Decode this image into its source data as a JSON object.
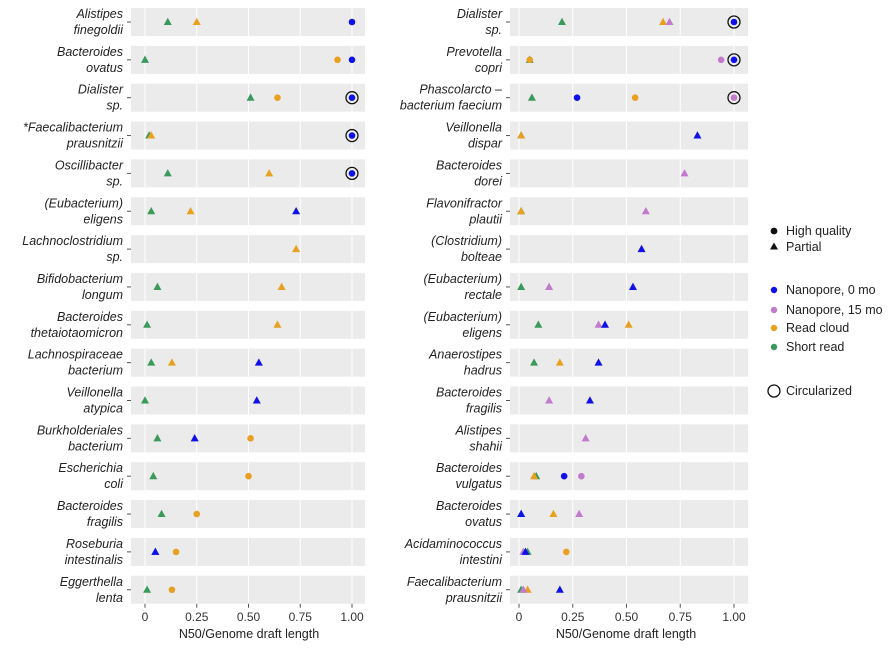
{
  "colors": {
    "Nanopore, 0 mo": "#1010e8",
    "Nanopore, 15 mo": "#c27bcc",
    "Read cloud": "#e8a020",
    "Short read": "#3a9a5c",
    "panel_bg": "#ebebeb"
  },
  "chart_data": [
    {
      "type": "scatter",
      "xlabel": "N50/Genome draft length",
      "xlim": [
        0,
        1
      ],
      "xticks": [
        "0",
        "0.25",
        "0.50",
        "0.75",
        "1.00"
      ],
      "rows": [
        {
          "label": [
            "Alistipes",
            "finegoldii"
          ],
          "points": [
            {
              "method": "Short read",
              "shape": "triangle",
              "x": 0.11
            },
            {
              "method": "Read cloud",
              "shape": "triangle",
              "x": 0.25
            },
            {
              "method": "Nanopore, 0 mo",
              "shape": "circle",
              "x": 1.0
            }
          ]
        },
        {
          "label": [
            "Bacteroides",
            "ovatus"
          ],
          "points": [
            {
              "method": "Short read",
              "shape": "triangle",
              "x": 0.0
            },
            {
              "method": "Read cloud",
              "shape": "circle",
              "x": 0.93
            },
            {
              "method": "Nanopore, 0 mo",
              "shape": "circle",
              "x": 1.0
            }
          ]
        },
        {
          "label": [
            "Dialister",
            "sp."
          ],
          "points": [
            {
              "method": "Short read",
              "shape": "triangle",
              "x": 0.51
            },
            {
              "method": "Read cloud",
              "shape": "circle",
              "x": 0.64
            },
            {
              "method": "Nanopore, 0 mo",
              "shape": "circle",
              "x": 1.0,
              "circularized": true
            }
          ]
        },
        {
          "label": [
            "*Faecalibacterium",
            "prausnitzii"
          ],
          "points": [
            {
              "method": "Short read",
              "shape": "triangle",
              "x": 0.02
            },
            {
              "method": "Read cloud",
              "shape": "triangle",
              "x": 0.03
            },
            {
              "method": "Nanopore, 0 mo",
              "shape": "circle",
              "x": 1.0,
              "circularized": true
            }
          ]
        },
        {
          "label": [
            "Oscillibacter",
            "sp."
          ],
          "points": [
            {
              "method": "Short read",
              "shape": "triangle",
              "x": 0.11
            },
            {
              "method": "Read cloud",
              "shape": "triangle",
              "x": 0.6
            },
            {
              "method": "Nanopore, 0 mo",
              "shape": "circle",
              "x": 1.0,
              "circularized": true
            }
          ]
        },
        {
          "label": [
            "(Eubacterium)",
            "eligens"
          ],
          "points": [
            {
              "method": "Short read",
              "shape": "triangle",
              "x": 0.03
            },
            {
              "method": "Read cloud",
              "shape": "triangle",
              "x": 0.22
            },
            {
              "method": "Nanopore, 0 mo",
              "shape": "triangle",
              "x": 0.73
            }
          ]
        },
        {
          "label": [
            "Lachnoclostridium",
            "sp."
          ],
          "points": [
            {
              "method": "Read cloud",
              "shape": "triangle",
              "x": 0.73
            }
          ]
        },
        {
          "label": [
            "Bifidobacterium",
            "longum"
          ],
          "points": [
            {
              "method": "Short read",
              "shape": "triangle",
              "x": 0.06
            },
            {
              "method": "Read cloud",
              "shape": "triangle",
              "x": 0.66
            }
          ]
        },
        {
          "label": [
            "Bacteroides",
            "thetaiotaomicron"
          ],
          "points": [
            {
              "method": "Short read",
              "shape": "triangle",
              "x": 0.01
            },
            {
              "method": "Read cloud",
              "shape": "triangle",
              "x": 0.64
            }
          ]
        },
        {
          "label": [
            "Lachnospiraceae",
            "bacterium"
          ],
          "points": [
            {
              "method": "Short read",
              "shape": "triangle",
              "x": 0.03
            },
            {
              "method": "Read cloud",
              "shape": "triangle",
              "x": 0.13
            },
            {
              "method": "Nanopore, 0 mo",
              "shape": "triangle",
              "x": 0.55
            }
          ]
        },
        {
          "label": [
            "Veillonella",
            "atypica"
          ],
          "points": [
            {
              "method": "Short read",
              "shape": "triangle",
              "x": 0.0
            },
            {
              "method": "Nanopore, 0 mo",
              "shape": "triangle",
              "x": 0.54
            }
          ]
        },
        {
          "label": [
            "Burkholderiales",
            "bacterium"
          ],
          "points": [
            {
              "method": "Short read",
              "shape": "triangle",
              "x": 0.06
            },
            {
              "method": "Nanopore, 0 mo",
              "shape": "triangle",
              "x": 0.24
            },
            {
              "method": "Read cloud",
              "shape": "circle",
              "x": 0.51
            }
          ]
        },
        {
          "label": [
            "Escherichia",
            "coli"
          ],
          "points": [
            {
              "method": "Short read",
              "shape": "triangle",
              "x": 0.04
            },
            {
              "method": "Read cloud",
              "shape": "circle",
              "x": 0.5
            }
          ]
        },
        {
          "label": [
            "Bacteroides",
            "fragilis"
          ],
          "points": [
            {
              "method": "Short read",
              "shape": "triangle",
              "x": 0.08
            },
            {
              "method": "Read cloud",
              "shape": "circle",
              "x": 0.25
            }
          ]
        },
        {
          "label": [
            "Roseburia",
            "intestinalis"
          ],
          "points": [
            {
              "method": "Short read",
              "shape": "triangle",
              "x": 0.05
            },
            {
              "method": "Read cloud",
              "shape": "circle",
              "x": 0.15
            },
            {
              "method": "Nanopore, 0 mo",
              "shape": "triangle",
              "x": 0.05
            }
          ]
        },
        {
          "label": [
            "Eggerthella",
            "lenta"
          ],
          "points": [
            {
              "method": "Short read",
              "shape": "triangle",
              "x": 0.01
            },
            {
              "method": "Read cloud",
              "shape": "circle",
              "x": 0.13
            }
          ]
        }
      ]
    },
    {
      "type": "scatter",
      "xlabel": "N50/Genome draft length",
      "xlim": [
        0,
        1
      ],
      "xticks": [
        "0",
        "0.25",
        "0.50",
        "0.75",
        "1.00"
      ],
      "rows": [
        {
          "label": [
            "Dialister",
            "sp."
          ],
          "points": [
            {
              "method": "Short read",
              "shape": "triangle",
              "x": 0.2
            },
            {
              "method": "Read cloud",
              "shape": "triangle",
              "x": 0.67
            },
            {
              "method": "Nanopore, 15 mo",
              "shape": "triangle",
              "x": 0.7
            },
            {
              "method": "Nanopore, 0 mo",
              "shape": "circle",
              "x": 1.0,
              "circularized": true
            }
          ]
        },
        {
          "label": [
            "Prevotella",
            "copri"
          ],
          "points": [
            {
              "method": "Short read",
              "shape": "triangle",
              "x": 0.05
            },
            {
              "method": "Read cloud",
              "shape": "circle",
              "x": 0.05
            },
            {
              "method": "Nanopore, 15 mo",
              "shape": "circle",
              "x": 0.94
            },
            {
              "method": "Nanopore, 0 mo",
              "shape": "circle",
              "x": 1.0,
              "circularized": true
            }
          ]
        },
        {
          "label": [
            "Phascolarcto –",
            "bacterium faecium"
          ],
          "points": [
            {
              "method": "Short read",
              "shape": "triangle",
              "x": 0.06
            },
            {
              "method": "Nanopore, 0 mo",
              "shape": "circle",
              "x": 0.27
            },
            {
              "method": "Read cloud",
              "shape": "circle",
              "x": 0.54
            },
            {
              "method": "Nanopore, 15 mo",
              "shape": "circle",
              "x": 1.0,
              "circularized": true
            }
          ]
        },
        {
          "label": [
            "Veillonella",
            "dispar"
          ],
          "points": [
            {
              "method": "Short read",
              "shape": "triangle",
              "x": 0.01
            },
            {
              "method": "Read cloud",
              "shape": "triangle",
              "x": 0.01
            },
            {
              "method": "Nanopore, 0 mo",
              "shape": "triangle",
              "x": 0.83
            }
          ]
        },
        {
          "label": [
            "Bacteroides",
            "dorei"
          ],
          "points": [
            {
              "method": "Nanopore, 15 mo",
              "shape": "triangle",
              "x": 0.77
            }
          ]
        },
        {
          "label": [
            "Flavonifractor",
            "plautii"
          ],
          "points": [
            {
              "method": "Short read",
              "shape": "triangle",
              "x": 0.01
            },
            {
              "method": "Read cloud",
              "shape": "triangle",
              "x": 0.01
            },
            {
              "method": "Nanopore, 15 mo",
              "shape": "triangle",
              "x": 0.59
            }
          ]
        },
        {
          "label": [
            "(Clostridium)",
            "bolteae"
          ],
          "points": [
            {
              "method": "Nanopore, 0 mo",
              "shape": "triangle",
              "x": 0.57
            }
          ]
        },
        {
          "label": [
            "(Eubacterium)",
            "rectale"
          ],
          "points": [
            {
              "method": "Short read",
              "shape": "triangle",
              "x": 0.01
            },
            {
              "method": "Nanopore, 15 mo",
              "shape": "triangle",
              "x": 0.14
            },
            {
              "method": "Nanopore, 0 mo",
              "shape": "triangle",
              "x": 0.53
            }
          ]
        },
        {
          "label": [
            "(Eubacterium)",
            "eligens"
          ],
          "points": [
            {
              "method": "Short read",
              "shape": "triangle",
              "x": 0.09
            },
            {
              "method": "Nanopore, 15 mo",
              "shape": "triangle",
              "x": 0.37
            },
            {
              "method": "Nanopore, 0 mo",
              "shape": "triangle",
              "x": 0.4
            },
            {
              "method": "Read cloud",
              "shape": "triangle",
              "x": 0.51
            }
          ]
        },
        {
          "label": [
            "Anaerostipes",
            "hadrus"
          ],
          "points": [
            {
              "method": "Short read",
              "shape": "triangle",
              "x": 0.07
            },
            {
              "method": "Read cloud",
              "shape": "triangle",
              "x": 0.19
            },
            {
              "method": "Nanopore, 0 mo",
              "shape": "triangle",
              "x": 0.37
            }
          ]
        },
        {
          "label": [
            "Bacteroides",
            "fragilis"
          ],
          "points": [
            {
              "method": "Nanopore, 15 mo",
              "shape": "triangle",
              "x": 0.14
            },
            {
              "method": "Nanopore, 0 mo",
              "shape": "triangle",
              "x": 0.33
            }
          ]
        },
        {
          "label": [
            "Alistipes",
            "shahii"
          ],
          "points": [
            {
              "method": "Nanopore, 15 mo",
              "shape": "triangle",
              "x": 0.31
            }
          ]
        },
        {
          "label": [
            "Bacteroides",
            "vulgatus"
          ],
          "points": [
            {
              "method": "Short read",
              "shape": "triangle",
              "x": 0.08
            },
            {
              "method": "Read cloud",
              "shape": "triangle",
              "x": 0.07
            },
            {
              "method": "Nanopore, 0 mo",
              "shape": "circle",
              "x": 0.21
            },
            {
              "method": "Nanopore, 15 mo",
              "shape": "circle",
              "x": 0.29
            }
          ]
        },
        {
          "label": [
            "Bacteroides",
            "ovatus"
          ],
          "points": [
            {
              "method": "Short read",
              "shape": "triangle",
              "x": 0.01
            },
            {
              "method": "Read cloud",
              "shape": "triangle",
              "x": 0.16
            },
            {
              "method": "Nanopore, 15 mo",
              "shape": "triangle",
              "x": 0.28
            },
            {
              "method": "Nanopore, 0 mo",
              "shape": "triangle",
              "x": 0.01
            }
          ]
        },
        {
          "label": [
            "Acidaminococcus",
            "intestini"
          ],
          "points": [
            {
              "method": "Short read",
              "shape": "triangle",
              "x": 0.04
            },
            {
              "method": "Nanopore, 0 mo",
              "shape": "triangle",
              "x": 0.03
            },
            {
              "method": "Nanopore, 15 mo",
              "shape": "triangle",
              "x": 0.02
            },
            {
              "method": "Read cloud",
              "shape": "circle",
              "x": 0.22
            }
          ]
        },
        {
          "label": [
            "Faecalibacterium",
            "prausnitzii"
          ],
          "points": [
            {
              "method": "Short read",
              "shape": "triangle",
              "x": 0.01
            },
            {
              "method": "Read cloud",
              "shape": "triangle",
              "x": 0.04
            },
            {
              "method": "Nanopore, 15 mo",
              "shape": "triangle",
              "x": 0.02
            },
            {
              "method": "Nanopore, 0 mo",
              "shape": "triangle",
              "x": 0.19
            }
          ]
        }
      ]
    }
  ],
  "legend": {
    "shapes": [
      {
        "label": "High quality",
        "shape": "circle"
      },
      {
        "label": "Partial",
        "shape": "triangle"
      }
    ],
    "methods": [
      "Nanopore, 0 mo",
      "Nanopore, 15 mo",
      "Read cloud",
      "Short read"
    ],
    "circularized": "Circularized"
  }
}
